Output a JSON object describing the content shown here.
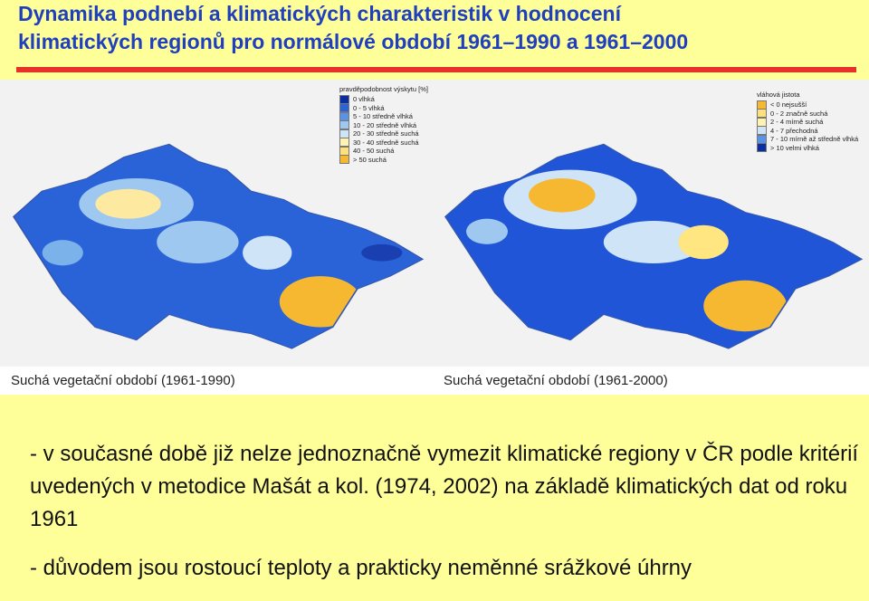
{
  "header": {
    "title_lines": [
      "Dynamika podnebí a klimatických charakteristik v hodnocení",
      "klimatických regionů pro normálové období 1961–1990  a 1961–2000"
    ]
  },
  "maps": [
    {
      "legend": {
        "title": "pravděpodobnost výskytu [%]",
        "items": [
          "0 vlhká",
          "0 - 5 vlhká",
          "5 - 10 středně vlhká",
          "10 - 20 středně vlhká",
          "20 - 30 středně suchá",
          "30 - 40 středně suchá",
          "40 - 50 suchá",
          "> 50 suchá"
        ]
      },
      "caption": "Suchá vegetační období (1961-1990)"
    },
    {
      "legend": {
        "title": "vláhová jistota",
        "items": [
          "< 0 nejsušší",
          "0 - 2 značně suchá",
          "2 - 4 mírně suchá",
          "4 - 7 přechodná",
          "7 - 10 mírně až středně vlhká",
          "> 10 velmi vlhká"
        ]
      },
      "caption": "Suchá vegetační období (1961-2000)"
    }
  ],
  "body": {
    "paragraphs": [
      "- v současné době již nelze jednoznačně vymezit klimatické regiony v ČR podle kritérií uvedených v metodice Mašát a kol. (1974, 2002) na základě klimatických dat od roku 1961",
      "- důvodem jsou rostoucí teploty a prakticky neměnné srážkové úhrny"
    ]
  }
}
